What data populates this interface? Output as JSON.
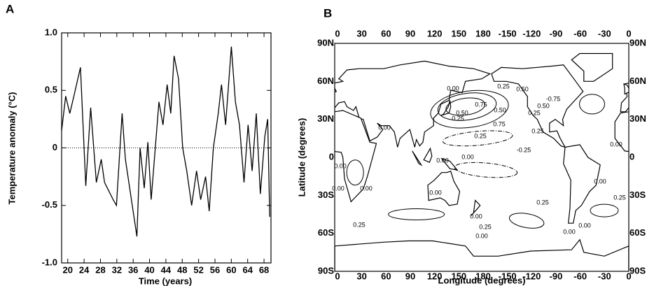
{
  "chart_data": {
    "type": "line",
    "panel": "A",
    "xlabel": "Time (years)",
    "ylabel": "Temperature anomaly (°C)",
    "x": [
      18.5,
      19.5,
      20.5,
      21.5,
      23.1,
      24.4,
      25.6,
      27.0,
      28.2,
      29.0,
      31.1,
      31.9,
      33.3,
      34.1,
      36.9,
      37.7,
      38.7,
      39.6,
      40.4,
      42.3,
      43.3,
      44.3,
      45.2,
      46.0,
      47.1,
      48.1,
      49.1,
      50.3,
      51.5,
      52.5,
      53.7,
      54.6,
      55.6,
      56.8,
      57.6,
      58.6,
      60.0,
      61.0,
      62.0,
      63.1,
      64.1,
      65.1,
      66.1,
      67.1,
      68.2,
      68.9,
      69.4
    ],
    "values": [
      0.15,
      0.45,
      0.3,
      0.45,
      0.7,
      -0.33,
      0.35,
      -0.3,
      -0.1,
      -0.3,
      -0.45,
      -0.5,
      0.3,
      -0.1,
      -0.77,
      0,
      -0.35,
      0.05,
      -0.45,
      0.4,
      0.2,
      0.55,
      0.3,
      0.8,
      0.6,
      0,
      -0.2,
      -0.5,
      -0.2,
      -0.45,
      -0.25,
      -0.55,
      0,
      0.3,
      0.55,
      0.2,
      0.88,
      0.4,
      0.2,
      -0.3,
      0.2,
      -0.2,
      0.3,
      -0.4,
      0.1,
      0.25,
      -0.6
    ],
    "color": "#000000",
    "reference_line": 0,
    "xlim": [
      18.5,
      69.7
    ],
    "xticks": [
      20,
      24,
      28,
      32,
      36,
      40,
      44,
      48,
      52,
      56,
      60,
      64,
      68
    ],
    "ylim": [
      -1,
      1
    ],
    "yticks": [
      {
        "value": -1,
        "label": "-1.0"
      },
      -0.5,
      0,
      0.5,
      {
        "value": 1,
        "label": "1.0"
      }
    ]
  },
  "map": {
    "panel": "B",
    "xlabel": "Longitude (degrees)",
    "ylabel": "Latitude (degrees)",
    "lon_labels": [
      "0",
      "30",
      "60",
      "90",
      "120",
      "150",
      "180",
      "-150",
      "-120",
      "-90",
      "-60",
      "-30",
      "0"
    ],
    "lat_labels": [
      "90N",
      "60N",
      "30N",
      "0",
      "30S",
      "60S",
      "90S"
    ],
    "contour_labels": [
      "0.00",
      "0.25",
      "0.50",
      "0.75",
      "0.50",
      "0.50",
      "0.25",
      "0.00",
      "0.75",
      "0.25",
      "-0.25",
      "0.00",
      "0.00",
      "0.00",
      "0.00",
      "0.00",
      "0.00",
      "0.25",
      "0.00",
      "0.25",
      "0.00",
      "0.25",
      "0.00",
      "0.25",
      "0.00",
      "0.00",
      "-0.75",
      "0.50",
      "0.25",
      "0.00",
      "0.25"
    ]
  }
}
